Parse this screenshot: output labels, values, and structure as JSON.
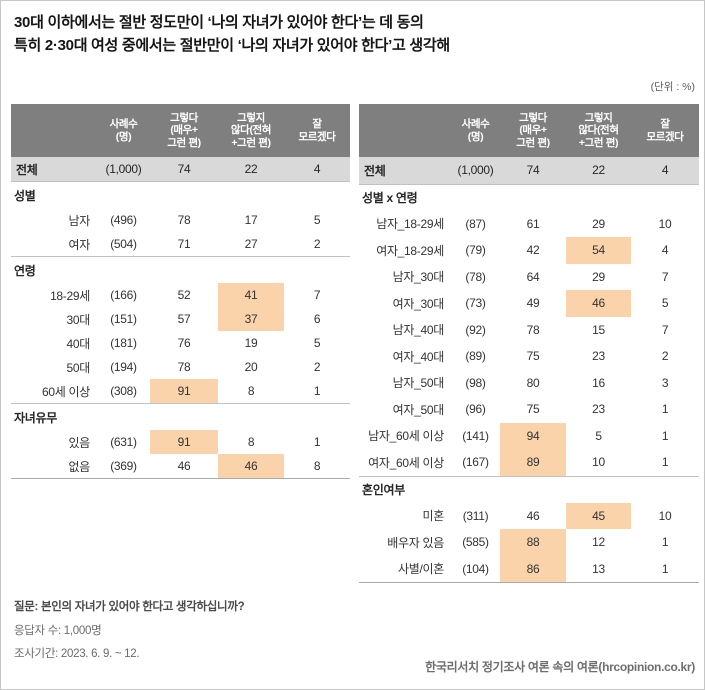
{
  "title": {
    "line1": "30대 이하에서는 절반 정도만이 ‘나의 자녀가 있어야 한다’는 데 동의",
    "line2": "특히 2·30대 여성 중에서는 절반만이 ‘나의 자녀가 있어야 한다’고 생각해"
  },
  "unit_label": "(단위 : %)",
  "colors": {
    "header_bg": "#7f7f7f",
    "header_text": "#ffffff",
    "total_row_bg": "#d9d9d9",
    "highlight": "#fad3ab",
    "separator": "#c2c2c2"
  },
  "chart_data": [
    {
      "type": "table",
      "name": "전체·성별·연령·자녀유무",
      "header_lines": [
        [
          "사례수",
          "(명)"
        ],
        [
          "그렇다",
          "(매우+",
          "그런 편)"
        ],
        [
          "그렇지",
          "않다(전혀",
          "+그런 편)"
        ],
        [
          "잘",
          "모르겠다"
        ]
      ],
      "columns": [
        "사례수(명)",
        "그렇다(매우+그런 편)",
        "그렇지 않다(전혀+그런 편)",
        "잘 모르겠다"
      ],
      "rows": [
        {
          "kind": "total",
          "label": "전체",
          "n": "(1,000)",
          "values": [
            74,
            22,
            4
          ],
          "highlight": []
        },
        {
          "kind": "group",
          "label": "성별"
        },
        {
          "kind": "data",
          "label": "남자",
          "n": "(496)",
          "values": [
            78,
            17,
            5
          ],
          "highlight": []
        },
        {
          "kind": "data",
          "label": "여자",
          "n": "(504)",
          "values": [
            71,
            27,
            2
          ],
          "highlight": []
        },
        {
          "kind": "group",
          "label": "연령"
        },
        {
          "kind": "data",
          "label": "18-29세",
          "n": "(166)",
          "values": [
            52,
            41,
            7
          ],
          "highlight": [
            1
          ]
        },
        {
          "kind": "data",
          "label": "30대",
          "n": "(151)",
          "values": [
            57,
            37,
            6
          ],
          "highlight": [
            1
          ]
        },
        {
          "kind": "data",
          "label": "40대",
          "n": "(181)",
          "values": [
            76,
            19,
            5
          ],
          "highlight": []
        },
        {
          "kind": "data",
          "label": "50대",
          "n": "(194)",
          "values": [
            78,
            20,
            2
          ],
          "highlight": []
        },
        {
          "kind": "data",
          "label": "60세 이상",
          "n": "(308)",
          "values": [
            91,
            8,
            1
          ],
          "highlight": [
            0
          ]
        },
        {
          "kind": "group",
          "label": "자녀유무"
        },
        {
          "kind": "data",
          "label": "있음",
          "n": "(631)",
          "values": [
            91,
            8,
            1
          ],
          "highlight": [
            0
          ]
        },
        {
          "kind": "data",
          "label": "없음",
          "n": "(369)",
          "values": [
            46,
            46,
            8
          ],
          "highlight": [
            1
          ]
        }
      ]
    },
    {
      "type": "table",
      "name": "성별 x 연령·혼인여부",
      "header_lines": [
        [
          "사례수",
          "(명)"
        ],
        [
          "그렇다",
          "(매우+",
          "그런 편)"
        ],
        [
          "그렇지",
          "않다(전혀",
          "+그런 편)"
        ],
        [
          "잘",
          "모르겠다"
        ]
      ],
      "columns": [
        "사례수(명)",
        "그렇다(매우+그런 편)",
        "그렇지 않다(전혀+그런 편)",
        "잘 모르겠다"
      ],
      "rows": [
        {
          "kind": "total",
          "label": "전체",
          "n": "(1,000)",
          "values": [
            74,
            22,
            4
          ],
          "highlight": []
        },
        {
          "kind": "group",
          "label": "성별 x 연령"
        },
        {
          "kind": "data",
          "label": "남자_18-29세",
          "n": "(87)",
          "values": [
            61,
            29,
            10
          ],
          "highlight": []
        },
        {
          "kind": "data",
          "label": "여자_18-29세",
          "n": "(79)",
          "values": [
            42,
            54,
            4
          ],
          "highlight": [
            1
          ]
        },
        {
          "kind": "data",
          "label": "남자_30대",
          "n": "(78)",
          "values": [
            64,
            29,
            7
          ],
          "highlight": []
        },
        {
          "kind": "data",
          "label": "여자_30대",
          "n": "(73)",
          "values": [
            49,
            46,
            5
          ],
          "highlight": [
            1
          ]
        },
        {
          "kind": "data",
          "label": "남자_40대",
          "n": "(92)",
          "values": [
            78,
            15,
            7
          ],
          "highlight": []
        },
        {
          "kind": "data",
          "label": "여자_40대",
          "n": "(89)",
          "values": [
            75,
            23,
            2
          ],
          "highlight": []
        },
        {
          "kind": "data",
          "label": "남자_50대",
          "n": "(98)",
          "values": [
            80,
            16,
            3
          ],
          "highlight": []
        },
        {
          "kind": "data",
          "label": "여자_50대",
          "n": "(96)",
          "values": [
            75,
            23,
            1
          ],
          "highlight": []
        },
        {
          "kind": "data",
          "label": "남자_60세 이상",
          "n": "(141)",
          "values": [
            94,
            5,
            1
          ],
          "highlight": [
            0
          ]
        },
        {
          "kind": "data",
          "label": "여자_60세 이상",
          "n": "(167)",
          "values": [
            89,
            10,
            1
          ],
          "highlight": [
            0
          ]
        },
        {
          "kind": "group",
          "label": "혼인여부"
        },
        {
          "kind": "data",
          "label": "미혼",
          "n": "(311)",
          "values": [
            46,
            45,
            10
          ],
          "highlight": [
            1
          ]
        },
        {
          "kind": "data",
          "label": "배우자 있음",
          "n": "(585)",
          "values": [
            88,
            12,
            1
          ],
          "highlight": [
            0
          ]
        },
        {
          "kind": "data",
          "label": "사별/이혼",
          "n": "(104)",
          "values": [
            86,
            13,
            1
          ],
          "highlight": [
            0
          ]
        }
      ]
    }
  ],
  "footer": {
    "question": "질문: 본인의 자녀가 있어야 한다고 생각하십니까?",
    "respondents": "응답자 수: 1,000명",
    "period": "조사기간: 2023. 6. 9. ~ 12.",
    "source": "한국리서치 정기조사 여론 속의 여론(hrcopinion.co.kr)"
  }
}
